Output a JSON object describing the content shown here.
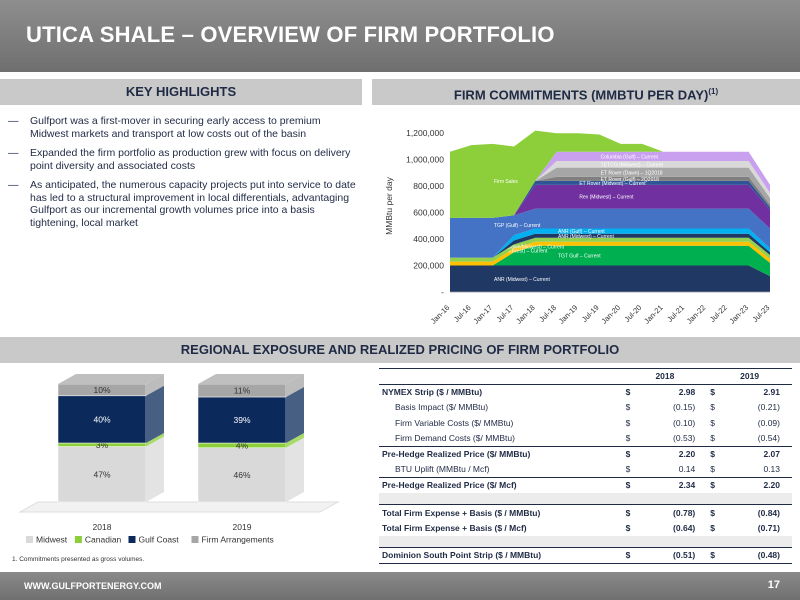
{
  "header": {
    "title": "UTICA SHALE – OVERVIEW OF FIRM PORTFOLIO"
  },
  "sections": {
    "key_highlights": "KEY HIGHLIGHTS",
    "firm_commitments": "FIRM COMMITMENTS (MMBTU PER DAY)",
    "firm_commitments_sup": "(1)",
    "regional": "REGIONAL EXPOSURE AND REALIZED PRICING OF FIRM PORTFOLIO"
  },
  "bullets": [
    {
      "dash": "—",
      "text": "Gulfport was a first-mover in securing early access to premium Midwest markets and transport at low costs out of the basin"
    },
    {
      "dash": "—",
      "text": "Expanded the firm portfolio as production grew with focus on delivery point diversity and associated costs"
    },
    {
      "dash": "—",
      "text": "As anticipated, the numerous capacity projects put into service to date has led to a structural improvement in local differentials, advantaging Gulfport as our incremental growth volumes price into a basis tightening, local market"
    }
  ],
  "chart_data": [
    {
      "type": "area",
      "ylabel": "MMBtu per day",
      "ylim": [
        0,
        1300000
      ],
      "yticks": [
        "-",
        "200,000",
        "400,000",
        "600,000",
        "800,000",
        "1,000,000",
        "1,200,000"
      ],
      "x": [
        "Jan-16",
        "Jul-16",
        "Jan-17",
        "Jul-17",
        "Jan-18",
        "Jul-18",
        "Jan-19",
        "Jul-19",
        "Jan-20",
        "Jul-20",
        "Jan-21",
        "Jul-21",
        "Jan-22",
        "Jul-22",
        "Jan-23",
        "Jul-23"
      ],
      "series": [
        {
          "name": "ANR (Midwest) – Current",
          "color": "#1f3864",
          "values": [
            200000,
            200000,
            200000,
            200000,
            200000,
            200000,
            200000,
            200000,
            200000,
            200000,
            200000,
            200000,
            200000,
            200000,
            200000,
            120000
          ]
        },
        {
          "name": "TGT Gulf – Current",
          "color": "#00b050",
          "values": [
            0,
            0,
            0,
            100000,
            150000,
            150000,
            150000,
            150000,
            150000,
            150000,
            150000,
            150000,
            150000,
            150000,
            150000,
            100000
          ]
        },
        {
          "name": "DTI (Midwest) – Current",
          "color": "#ffc000",
          "values": [
            30000,
            30000,
            30000,
            30000,
            30000,
            30000,
            30000,
            30000,
            30000,
            30000,
            30000,
            30000,
            30000,
            30000,
            30000,
            30000
          ]
        },
        {
          "name": "ANR (Dawn/Midwest) – Current",
          "color": "#92d050",
          "values": [
            30000,
            30000,
            30000,
            30000,
            30000,
            30000,
            30000,
            30000,
            30000,
            30000,
            30000,
            30000,
            30000,
            30000,
            30000,
            30000
          ]
        },
        {
          "name": "ANR (Midwest) – Current",
          "color": "#203864",
          "values": [
            0,
            0,
            0,
            30000,
            30000,
            30000,
            30000,
            30000,
            30000,
            30000,
            30000,
            30000,
            30000,
            30000,
            30000,
            20000
          ]
        },
        {
          "name": "ANR (Gulf) – Current",
          "color": "#00b0f0",
          "values": [
            0,
            0,
            0,
            40000,
            40000,
            40000,
            40000,
            40000,
            40000,
            40000,
            40000,
            40000,
            40000,
            40000,
            40000,
            30000
          ]
        },
        {
          "name": "TGP (Gulf) – Current",
          "color": "#4472c4",
          "values": [
            300000,
            300000,
            300000,
            150000,
            150000,
            150000,
            150000,
            150000,
            150000,
            150000,
            150000,
            150000,
            150000,
            150000,
            150000,
            150000
          ]
        },
        {
          "name": "Rex (Midwest) – Current",
          "color": "#7030a0",
          "values": [
            0,
            0,
            0,
            0,
            180000,
            180000,
            180000,
            180000,
            180000,
            180000,
            180000,
            180000,
            180000,
            180000,
            180000,
            140000
          ]
        },
        {
          "name": "ET Rover (Midwest) – Current",
          "color": "#2f5597",
          "values": [
            0,
            0,
            0,
            0,
            30000,
            30000,
            30000,
            30000,
            30000,
            30000,
            30000,
            30000,
            30000,
            30000,
            30000,
            20000
          ]
        },
        {
          "name": "ET Rover (Gulf) – 2Q2018",
          "color": "#7f7f7f",
          "values": [
            0,
            0,
            0,
            0,
            0,
            30000,
            30000,
            30000,
            30000,
            30000,
            30000,
            30000,
            30000,
            30000,
            30000,
            20000
          ]
        },
        {
          "name": "ET Rover (Dawn) – 1Q2018",
          "color": "#a6a6a6",
          "values": [
            0,
            0,
            0,
            0,
            0,
            70000,
            70000,
            70000,
            70000,
            70000,
            70000,
            70000,
            70000,
            70000,
            70000,
            50000
          ]
        },
        {
          "name": "TETCO (Midwest) – Current",
          "color": "#d9d9d9",
          "values": [
            0,
            0,
            0,
            0,
            0,
            50000,
            50000,
            50000,
            50000,
            50000,
            50000,
            50000,
            50000,
            50000,
            50000,
            40000
          ]
        },
        {
          "name": "Columbia (Gulf) – Current",
          "color": "#c9a0f0",
          "values": [
            0,
            0,
            0,
            0,
            0,
            70000,
            70000,
            70000,
            70000,
            70000,
            70000,
            70000,
            70000,
            70000,
            70000,
            60000
          ]
        },
        {
          "name": "Firm Sales",
          "color": "#8ccf3a",
          "values": [
            500000,
            550000,
            560000,
            520000,
            380000,
            140000,
            140000,
            130000,
            60000,
            60000,
            0,
            0,
            0,
            0,
            0,
            0
          ]
        }
      ]
    },
    {
      "type": "bar",
      "stacked": true,
      "categories": [
        "2018",
        "2019"
      ],
      "series": [
        {
          "name": "Midwest",
          "color": "#d9d9d9",
          "values": [
            47,
            46
          ]
        },
        {
          "name": "Canadian",
          "color": "#8ccf3a",
          "values": [
            3,
            4
          ]
        },
        {
          "name": "Gulf Coast",
          "color": "#0b2a5b",
          "values": [
            40,
            39
          ]
        },
        {
          "name": "Firm Arrangements",
          "color": "#a6a6a6",
          "values": [
            10,
            11
          ]
        }
      ],
      "labels": [
        [
          "47%",
          "3%",
          "40%",
          "10%"
        ],
        [
          "46%",
          "4%",
          "39%",
          "11%"
        ]
      ]
    }
  ],
  "table": {
    "years": [
      "2018",
      "2019"
    ],
    "rows": [
      {
        "label": "NYMEX Strip ($ / MMBtu)",
        "cur1": "$",
        "v1": "2.98",
        "cur2": "$",
        "v2": "2.91",
        "style": "boldtop"
      },
      {
        "label": "Basis Impact ($/ MMBtu)",
        "cur1": "$",
        "v1": "(0.15)",
        "cur2": "$",
        "v2": "(0.21)",
        "style": "ind"
      },
      {
        "label": "Firm Variable Costs ($/ MMBtu)",
        "cur1": "$",
        "v1": "(0.10)",
        "cur2": "$",
        "v2": "(0.09)",
        "style": "ind"
      },
      {
        "label": "Firm Demand Costs ($/ MMBtu)",
        "cur1": "$",
        "v1": "(0.53)",
        "cur2": "$",
        "v2": "(0.54)",
        "style": "ind"
      },
      {
        "label": "Pre-Hedge Realized Price ($/ MMBtu)",
        "cur1": "$",
        "v1": "2.20",
        "cur2": "$",
        "v2": "2.07",
        "style": "bold"
      },
      {
        "label": "BTU Uplift (MMBtu / Mcf)",
        "cur1": "$",
        "v1": "0.14",
        "cur2": "$",
        "v2": "0.13",
        "style": "ind"
      },
      {
        "label": "Pre-Hedge Realized Price ($/ Mcf)",
        "cur1": "$",
        "v1": "2.34",
        "cur2": "$",
        "v2": "2.20",
        "style": "bold"
      },
      {
        "label": "",
        "cur1": "",
        "v1": "",
        "cur2": "",
        "v2": "",
        "style": "spacer"
      },
      {
        "label": "Total Firm Expense + Basis ($ / MMBtu)",
        "cur1": "$",
        "v1": "(0.78)",
        "cur2": "$",
        "v2": "(0.84)",
        "style": "bold"
      },
      {
        "label": "Total Firm Expense + Basis ($ / Mcf)",
        "cur1": "$",
        "v1": "(0.64)",
        "cur2": "$",
        "v2": "(0.71)",
        "style": "boldplain"
      },
      {
        "label": "",
        "cur1": "",
        "v1": "",
        "cur2": "",
        "v2": "",
        "style": "spacer"
      },
      {
        "label": "Dominion South Point Strip ($ / MMBtu)",
        "cur1": "$",
        "v1": "(0.51)",
        "cur2": "$",
        "v2": "(0.48)",
        "style": "last"
      }
    ]
  },
  "footnote": "1.      Commitments presented as gross volumes.",
  "footer": {
    "url": "WWW.GULFPORTENERGY.COM",
    "page": "17"
  }
}
